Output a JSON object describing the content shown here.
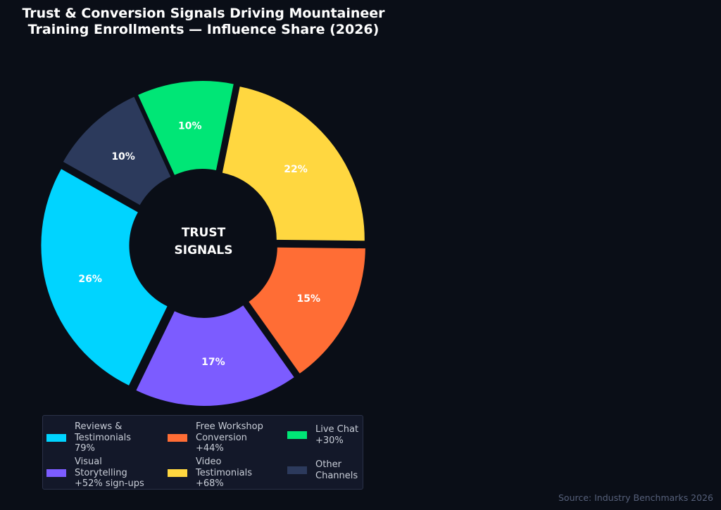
{
  "chart_data": {
    "type": "pie",
    "title": "Trust & Conversion Signals Driving Mountaineer\nTraining Enrollments — Influence Share (2026)",
    "center_label": [
      "TRUST",
      "SIGNALS"
    ],
    "slices": [
      {
        "label": "Video\nTestimonials\n+68%",
        "value": 22,
        "display": "22%",
        "color": "#ffd740"
      },
      {
        "label": "Free Workshop\nConversion\n+44%",
        "value": 15,
        "display": "15%",
        "color": "#ff6d35"
      },
      {
        "label": "Visual\nStorytelling\n+52% sign-ups",
        "value": 17,
        "display": "17%",
        "color": "#7c5cff"
      },
      {
        "label": "Reviews &\nTestimonials\n79%",
        "value": 26,
        "display": "26%",
        "color": "#00d4ff"
      },
      {
        "label": "Other\nChannels",
        "value": 10,
        "display": "10%",
        "color": "#2c3a5c"
      },
      {
        "label": "Live Chat\n+30%",
        "value": 10,
        "display": "10%",
        "color": "#00e676"
      }
    ],
    "legend_order": [
      3,
      2,
      1,
      0,
      5,
      4
    ],
    "legend_placement": "bottom",
    "source": "Source: Industry Benchmarks 2026"
  }
}
